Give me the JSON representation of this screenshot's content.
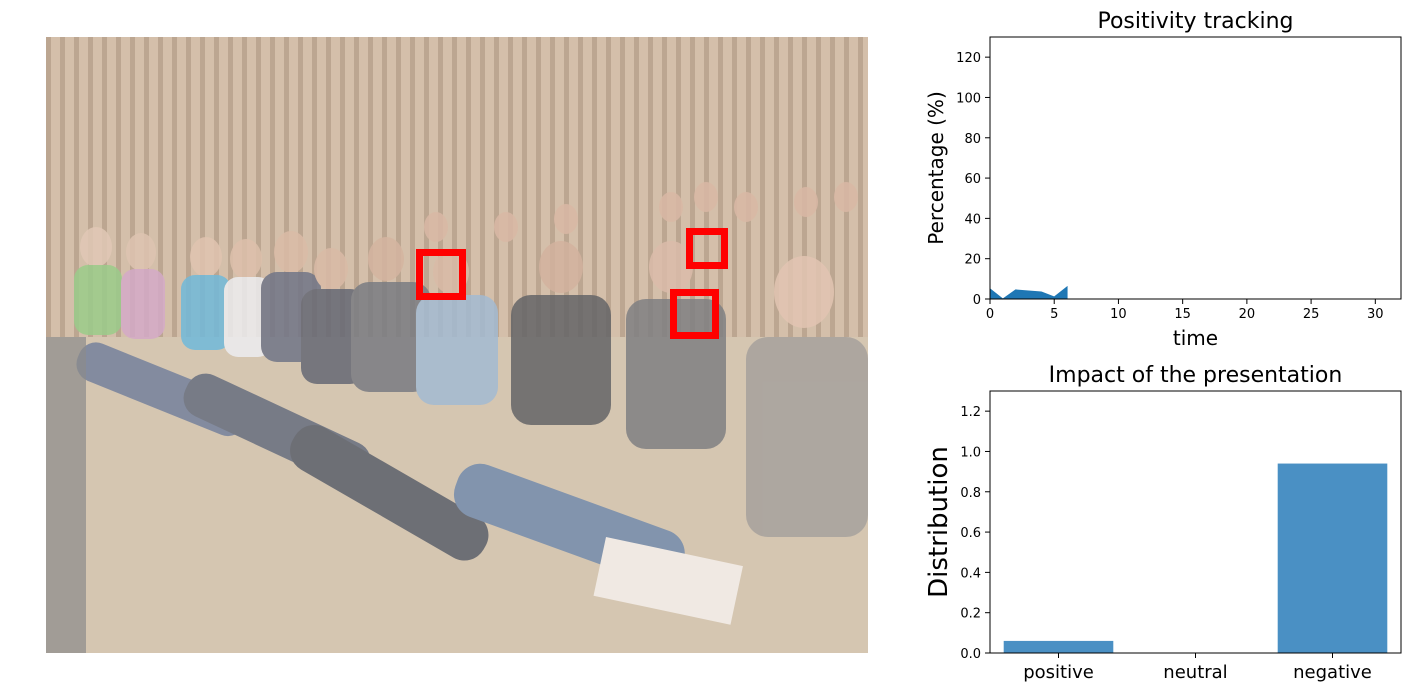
{
  "image_panel": {
    "description_icon": "photo-of-seated-audience",
    "face_boxes": [
      {
        "id": "face-1"
      },
      {
        "id": "face-2"
      },
      {
        "id": "face-3"
      }
    ],
    "box_color": "#ff0000"
  },
  "chart_data": [
    {
      "type": "area",
      "title": "Positivity tracking",
      "xlabel": "time",
      "ylabel": "Percentage (%)",
      "xlim": [
        0,
        32
      ],
      "ylim": [
        0,
        130
      ],
      "xticks": [
        0,
        5,
        10,
        15,
        20,
        25,
        30
      ],
      "yticks": [
        0,
        20,
        40,
        60,
        80,
        100,
        120
      ],
      "x": [
        0,
        1,
        2,
        3,
        4,
        5,
        6
      ],
      "values": [
        5,
        0,
        4.5,
        4,
        3.5,
        1,
        6
      ],
      "color": "#1f77b4",
      "grid": false
    },
    {
      "type": "bar",
      "title": "Impact of the presentation",
      "xlabel": "",
      "ylabel": "Distribution",
      "categories": [
        "positive",
        "neutral",
        "negative"
      ],
      "values": [
        0.06,
        0.0,
        0.94
      ],
      "ylim": [
        0,
        1.3
      ],
      "yticks": [
        0.0,
        0.2,
        0.4,
        0.6,
        0.8,
        1.0,
        1.2
      ],
      "color": "#4a90c4",
      "grid": false
    }
  ]
}
